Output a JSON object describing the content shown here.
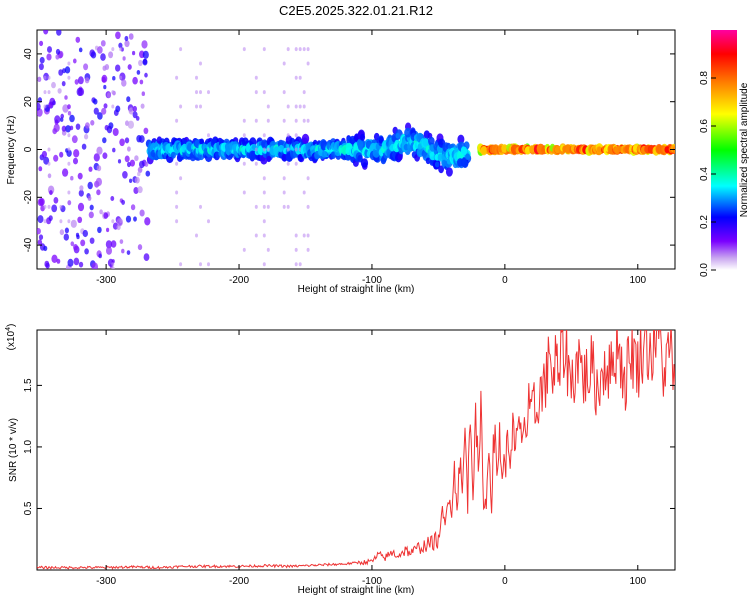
{
  "page": {
    "title": "C2E5.2025.322.01.21.R12"
  },
  "chart_data": [
    {
      "type": "heatmap",
      "title": "C2E5.2025.322.01.21.R12",
      "xlabel": "Height of straight line (km)",
      "ylabel": "Frequency (Hz)",
      "xlim": [
        -352,
        128
      ],
      "ylim": [
        -50,
        50
      ],
      "x_ticks": [
        -300,
        -200,
        -100,
        0,
        100
      ],
      "x_tick_labels": [
        "-300",
        "-200",
        "-100",
        "0",
        "100"
      ],
      "y_ticks": [
        -40,
        -20,
        0,
        20,
        40
      ],
      "y_tick_labels": [
        "-40",
        "-20",
        "0",
        "20",
        "40"
      ],
      "colorbar": {
        "label": "Normalized spectral amplitude",
        "range": [
          0,
          1
        ],
        "ticks": [
          0.0,
          0.2,
          0.4,
          0.6,
          0.8
        ],
        "tick_labels": [
          "0.0",
          "0.2",
          "0.4",
          "0.6",
          "0.8"
        ],
        "colors": [
          "#ffffff",
          "#c9a6f0",
          "#7a00ff",
          "#0000ff",
          "#00ffff",
          "#00ff00",
          "#ffff00",
          "#ff7f00",
          "#ff0000",
          "#ff00a0"
        ]
      },
      "regions": [
        {
          "x": [
            -352,
            -270
          ],
          "freq_spread": 50,
          "amplitude": [
            0.05,
            0.22
          ]
        },
        {
          "x": [
            -270,
            -120
          ],
          "freq_spread": 5,
          "amplitude": [
            0.15,
            0.4
          ]
        },
        {
          "x": [
            -120,
            -30
          ],
          "freq_spread": 8,
          "amplitude": [
            0.15,
            0.4
          ]
        },
        {
          "x": [
            -20,
            128
          ],
          "freq_spread": 1,
          "amplitude": [
            0.5,
            0.95
          ]
        }
      ]
    },
    {
      "type": "line",
      "xlabel": "Height of straight line (km)",
      "ylabel": "SNR (10 * v/v)",
      "y_multiplier_label": "(x10",
      "y_multiplier_exp": "4",
      "y_multiplier_close": ")",
      "xlim": [
        -352,
        128
      ],
      "ylim": [
        0,
        1.95
      ],
      "x_ticks": [
        -300,
        -200,
        -100,
        0,
        100
      ],
      "x_tick_labels": [
        "-300",
        "-200",
        "-100",
        "0",
        "100"
      ],
      "y_ticks": [
        0.5,
        1.0,
        1.5
      ],
      "y_tick_labels": [
        "0.5",
        "1.0",
        "1.5"
      ],
      "color": "#ee3333",
      "series": [
        {
          "name": "SNR",
          "x": [
            -352,
            -320,
            -300,
            -280,
            -260,
            -240,
            -220,
            -200,
            -180,
            -160,
            -140,
            -120,
            -110,
            -100,
            -95,
            -90,
            -85,
            -80,
            -75,
            -70,
            -65,
            -60,
            -55,
            -50,
            -47,
            -45,
            -42,
            -40,
            -38,
            -36,
            -34,
            -32,
            -30,
            -28,
            -26,
            -24,
            -22,
            -20,
            -18,
            -16,
            -14,
            -12,
            -10,
            -8,
            -6,
            -4,
            -2,
            0,
            2,
            4,
            6,
            8,
            10,
            12,
            14,
            16,
            18,
            20,
            22,
            24,
            26,
            28,
            30,
            32,
            34,
            36,
            38,
            40,
            45,
            50,
            55,
            60,
            65,
            70,
            75,
            80,
            85,
            90,
            95,
            100,
            105,
            110,
            115,
            120,
            125,
            128
          ],
          "values": [
            0.02,
            0.02,
            0.02,
            0.025,
            0.02,
            0.03,
            0.03,
            0.03,
            0.035,
            0.03,
            0.04,
            0.05,
            0.06,
            0.07,
            0.12,
            0.1,
            0.14,
            0.12,
            0.16,
            0.14,
            0.18,
            0.2,
            0.22,
            0.25,
            0.45,
            0.35,
            0.65,
            0.5,
            0.8,
            0.55,
            0.9,
            0.6,
            1.15,
            0.55,
            1.3,
            0.65,
            1.4,
            0.7,
            1.25,
            0.6,
            0.5,
            1.05,
            0.55,
            1.15,
            0.75,
            1.1,
            0.8,
            0.85,
            1.0,
            0.95,
            1.15,
            0.9,
            1.2,
            1.05,
            1.25,
            1.1,
            1.3,
            1.2,
            1.35,
            1.25,
            1.5,
            1.4,
            1.6,
            1.5,
            1.95,
            1.45,
            1.7,
            1.55,
            1.85,
            1.5,
            1.75,
            1.55,
            1.65,
            1.45,
            1.7,
            1.6,
            1.9,
            1.5,
            1.8,
            1.65,
            1.9,
            1.75,
            1.95,
            1.6,
            1.8,
            1.5
          ]
        }
      ]
    }
  ]
}
